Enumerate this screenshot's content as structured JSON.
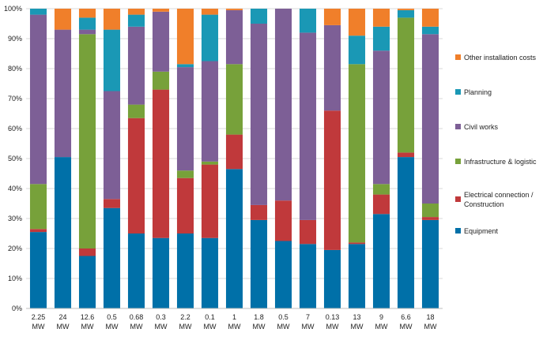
{
  "chart_data": {
    "type": "bar",
    "stacked": true,
    "percent": true,
    "categories": [
      "2.25 MW",
      "24 MW",
      "12.6 MW",
      "0.5 MW",
      "0.68 MW",
      "0.3 MW",
      "2.2 MW",
      "0.1 MW",
      "1 MW",
      "1.8 MW",
      "0.5 MW",
      "7 MW",
      "0.13 MW",
      "13 MW",
      "9 MW",
      "6.6 MW",
      "18 MW"
    ],
    "series": [
      {
        "name": "Equipment",
        "color": "#0070A8",
        "values": [
          25.5,
          50.5,
          17.5,
          33.5,
          25,
          23.5,
          25,
          23.5,
          46.5,
          29.5,
          22.5,
          21.5,
          19.5,
          21.5,
          31.5,
          50.5,
          29.5
        ]
      },
      {
        "name": "Electrical connection / Construction",
        "color": "#C0393B",
        "values": [
          1,
          0,
          2.5,
          3,
          38.5,
          49.5,
          18.5,
          24.5,
          11.5,
          5,
          13.5,
          8,
          46.5,
          0.5,
          6.5,
          1.5,
          1
        ]
      },
      {
        "name": "Infrastructure & logistic",
        "color": "#77A13A",
        "values": [
          15,
          0,
          71.5,
          0,
          4.5,
          6,
          2.5,
          1,
          23.5,
          0,
          0,
          0,
          0,
          59.5,
          3.5,
          45,
          4.5
        ]
      },
      {
        "name": "Civil works",
        "color": "#7D5F96",
        "values": [
          56.5,
          42.5,
          1.5,
          36,
          26,
          20,
          34.5,
          33.5,
          18,
          60.5,
          64,
          62.5,
          28.5,
          0,
          44.5,
          0,
          56.5
        ]
      },
      {
        "name": "Planning",
        "color": "#1A98B5",
        "values": [
          2,
          0,
          4,
          20.5,
          4,
          0,
          1,
          15.5,
          0,
          5,
          0,
          8,
          0,
          9.5,
          8,
          2.5,
          2.5
        ]
      },
      {
        "name": "Other installation costs",
        "color": "#F07F2A",
        "values": [
          0,
          7,
          3,
          7,
          2,
          1,
          18.5,
          2,
          0.5,
          0,
          0,
          0,
          5.5,
          9,
          6,
          0.5,
          6
        ]
      }
    ],
    "y_ticks": [
      "0%",
      "10%",
      "20%",
      "30%",
      "40%",
      "50%",
      "60%",
      "70%",
      "80%",
      "90%",
      "100%"
    ],
    "ylim": [
      0,
      100
    ],
    "grid": true,
    "legend_position": "right",
    "title": "",
    "xlabel": "",
    "ylabel": ""
  }
}
